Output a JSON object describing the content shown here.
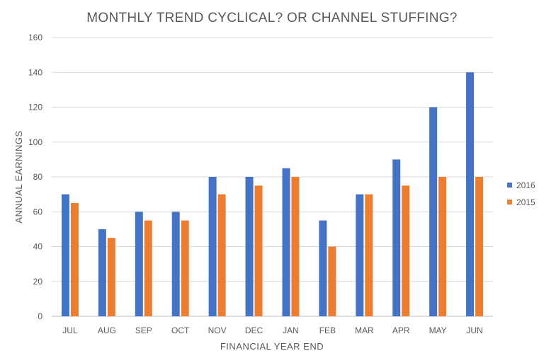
{
  "chart_data": {
    "type": "bar",
    "title": "MONTHLY TREND CYCLICAL? OR CHANNEL STUFFING?",
    "xlabel": "FINANCIAL YEAR END",
    "ylabel": "ANNUAL EARNINGS",
    "categories": [
      "JUL",
      "AUG",
      "SEP",
      "OCT",
      "NOV",
      "DEC",
      "JAN",
      "FEB",
      "MAR",
      "APR",
      "MAY",
      "JUN"
    ],
    "series": [
      {
        "name": "2016",
        "color": "#4472c4",
        "values": [
          70,
          50,
          60,
          60,
          80,
          80,
          85,
          55,
          70,
          90,
          120,
          140
        ]
      },
      {
        "name": "2015",
        "color": "#ed7d31",
        "values": [
          65,
          45,
          55,
          55,
          70,
          75,
          80,
          40,
          70,
          75,
          80,
          80
        ]
      }
    ],
    "ylim": [
      0,
      160
    ],
    "yticks": [
      "0",
      "20",
      "40",
      "60",
      "80",
      "100",
      "120",
      "140",
      "160"
    ],
    "grid": true,
    "legend_position": "right"
  }
}
